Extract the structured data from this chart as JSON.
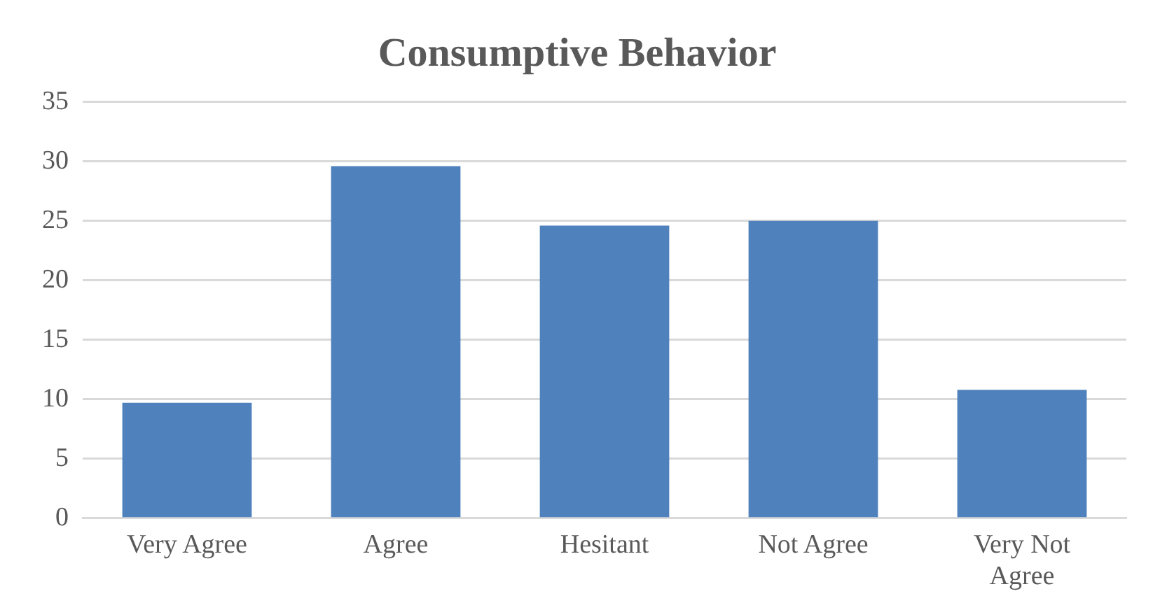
{
  "chart_data": {
    "type": "bar",
    "title": "Consumptive Behavior",
    "categories": [
      "Very Agree",
      "Agree",
      "Hesitant",
      "Not Agree",
      "Very Not Agree"
    ],
    "values": [
      9.7,
      29.6,
      24.6,
      25,
      10.8
    ],
    "color": "#4f81bd",
    "ylim": [
      0,
      35
    ],
    "yticks": [
      0,
      5,
      10,
      15,
      20,
      25,
      30,
      35
    ],
    "grid": "y",
    "legend": false
  }
}
